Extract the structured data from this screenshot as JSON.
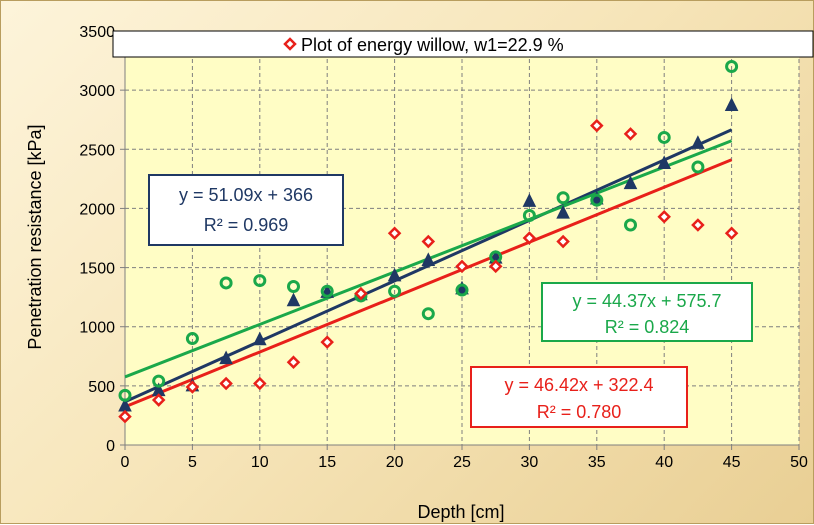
{
  "chart_data": {
    "type": "scatter",
    "legend_text": "Plot of energy willow, w1=22.9 %",
    "legend_position": "top",
    "xlabel": "Depth [cm]",
    "ylabel": "Penetration resistance [kPa]",
    "xlim": [
      0,
      50
    ],
    "ylim": [
      0,
      3500
    ],
    "xticks": [
      0,
      5,
      10,
      15,
      20,
      25,
      30,
      35,
      40,
      45,
      50
    ],
    "yticks": [
      0,
      500,
      1000,
      1500,
      2000,
      2500,
      3000,
      3500
    ],
    "grid": true,
    "series": [
      {
        "marker": "triangle",
        "color": "#1f3864",
        "points": [
          [
            0,
            330
          ],
          [
            2.5,
            460
          ],
          [
            5,
            500
          ],
          [
            7.5,
            730
          ],
          [
            10,
            890
          ],
          [
            12.5,
            1220
          ],
          [
            15,
            1290
          ],
          [
            17.5,
            1270
          ],
          [
            20,
            1430
          ],
          [
            22.5,
            1560
          ],
          [
            25,
            1320
          ],
          [
            27.5,
            1580
          ],
          [
            30,
            2060
          ],
          [
            32.5,
            1960
          ],
          [
            35,
            2080
          ],
          [
            37.5,
            2210
          ],
          [
            40,
            2380
          ],
          [
            42.5,
            2550
          ],
          [
            45,
            2870
          ]
        ],
        "trendline": {
          "slope": 51.09,
          "intercept": 366,
          "equation": "y = 51.09x + 366",
          "r2": "R² = 0.969"
        }
      },
      {
        "marker": "circle",
        "color": "#1aa84a",
        "points": [
          [
            0,
            420
          ],
          [
            2.5,
            540
          ],
          [
            5,
            900
          ],
          [
            7.5,
            1370
          ],
          [
            10,
            1390
          ],
          [
            12.5,
            1340
          ],
          [
            15,
            1300
          ],
          [
            17.5,
            1260
          ],
          [
            20,
            1300
          ],
          [
            22.5,
            1110
          ],
          [
            25,
            1310
          ],
          [
            27.5,
            1590
          ],
          [
            30,
            1940
          ],
          [
            32.5,
            2090
          ],
          [
            35,
            2070
          ],
          [
            37.5,
            1860
          ],
          [
            40,
            2600
          ],
          [
            42.5,
            2350
          ],
          [
            45,
            3200
          ]
        ],
        "trendline": {
          "slope": 44.37,
          "intercept": 575.7,
          "equation": "y = 44.37x + 575.7",
          "r2": "R² = 0.824"
        }
      },
      {
        "marker": "diamond",
        "color": "#e8201a",
        "points": [
          [
            0,
            240
          ],
          [
            2.5,
            380
          ],
          [
            5,
            490
          ],
          [
            7.5,
            520
          ],
          [
            10,
            520
          ],
          [
            12.5,
            700
          ],
          [
            15,
            870
          ],
          [
            17.5,
            1280
          ],
          [
            20,
            1790
          ],
          [
            22.5,
            1720
          ],
          [
            25,
            1510
          ],
          [
            27.5,
            1510
          ],
          [
            30,
            1750
          ],
          [
            32.5,
            1720
          ],
          [
            35,
            2700
          ],
          [
            37.5,
            2630
          ],
          [
            40,
            1930
          ],
          [
            42.5,
            1860
          ],
          [
            45,
            1790
          ]
        ],
        "trendline": {
          "slope": 46.42,
          "intercept": 322.4,
          "equation": "y = 46.42x + 322.4",
          "r2": "R² = 0.780"
        }
      }
    ]
  },
  "colors": {
    "plot_bg": "#fffdc5",
    "grid": "#7f7f7f",
    "axis": "#7f7f7f"
  }
}
